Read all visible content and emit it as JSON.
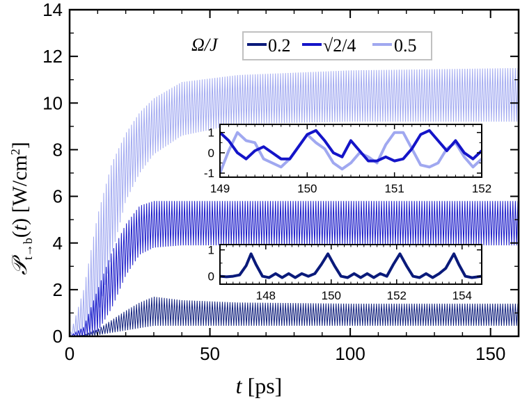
{
  "chart_data": [
    {
      "type": "line",
      "xlabel": "t [ps]",
      "ylabel": "P_t→b(t) [W/cm²]",
      "xlim": [
        0,
        160
      ],
      "ylim": [
        0,
        14
      ],
      "xticks": [
        0,
        50,
        100,
        150
      ],
      "yticks": [
        0,
        2,
        4,
        6,
        8,
        10,
        12,
        14
      ],
      "legend": {
        "title": "Ω/J",
        "placement": "top-center",
        "entries": [
          "0.2",
          "√2/4",
          "0.5"
        ]
      },
      "series": [
        {
          "name": "0.2",
          "color": "#0a1a7a",
          "envelope_t": [
            0,
            5,
            10,
            15,
            20,
            25,
            30,
            40,
            60,
            100,
            160
          ],
          "max": [
            0,
            0.05,
            0.3,
            0.7,
            1.1,
            1.45,
            1.7,
            1.55,
            1.45,
            1.4,
            1.4
          ],
          "min": [
            0,
            0,
            0.05,
            0.15,
            0.25,
            0.35,
            0.45,
            0.45,
            0.45,
            0.45,
            0.45
          ]
        },
        {
          "name": "√2/4",
          "color": "#1414c8",
          "envelope_t": [
            0,
            5,
            10,
            15,
            20,
            25,
            30,
            40,
            60,
            100,
            160
          ],
          "max": [
            0,
            0.4,
            2.0,
            3.6,
            4.8,
            5.6,
            5.8,
            5.8,
            5.8,
            5.8,
            5.8
          ],
          "min": [
            0,
            0,
            0.2,
            1.2,
            2.6,
            3.5,
            3.8,
            3.9,
            3.9,
            3.9,
            3.9
          ]
        },
        {
          "name": "0.5",
          "color": "#a0a8f0",
          "envelope_t": [
            0,
            5,
            10,
            15,
            20,
            25,
            30,
            40,
            60,
            100,
            160
          ],
          "max": [
            0,
            2.0,
            5.2,
            7.4,
            8.7,
            9.6,
            10.2,
            10.9,
            11.2,
            11.4,
            11.5
          ],
          "min": [
            0,
            0,
            0.8,
            3.5,
            5.8,
            7.0,
            7.8,
            8.6,
            9.1,
            9.2,
            9.2
          ]
        }
      ]
    },
    {
      "type": "line",
      "inset": "upper",
      "xlim": [
        149,
        152
      ],
      "ylim": [
        -1.2,
        1.4
      ],
      "xticks": [
        149,
        150,
        151,
        152
      ],
      "yticks": [
        -1,
        0,
        1
      ],
      "series": [
        {
          "name": "√2/4",
          "color": "#1414c8",
          "x": [
            149.0,
            149.1,
            149.2,
            149.3,
            149.4,
            149.5,
            149.6,
            149.7,
            149.8,
            149.9,
            150.0,
            150.1,
            150.2,
            150.3,
            150.4,
            150.5,
            150.6,
            150.7,
            150.8,
            150.9,
            151.0,
            151.1,
            151.2,
            151.3,
            151.4,
            151.5,
            151.6,
            151.7,
            151.8,
            151.9,
            152.0
          ],
          "y": [
            1.0,
            0.6,
            0.0,
            -0.3,
            0.1,
            0.3,
            0.0,
            -0.3,
            -0.3,
            0.3,
            0.9,
            1.1,
            0.6,
            0.0,
            -0.2,
            0.6,
            0.1,
            -0.4,
            -0.4,
            -0.2,
            -0.4,
            -0.3,
            0.2,
            0.9,
            1.1,
            0.6,
            0.1,
            0.6,
            0.0,
            -0.3,
            0.1
          ]
        },
        {
          "name": "0.5",
          "color": "#a0a8f0",
          "x": [
            149.0,
            149.1,
            149.2,
            149.3,
            149.4,
            149.5,
            149.6,
            149.7,
            149.8,
            149.9,
            150.0,
            150.1,
            150.2,
            150.3,
            150.4,
            150.5,
            150.6,
            150.7,
            150.8,
            150.9,
            151.0,
            151.1,
            151.2,
            151.3,
            151.4,
            151.5,
            151.6,
            151.7,
            151.8,
            151.9,
            152.0
          ],
          "y": [
            -1.0,
            0.1,
            1.0,
            0.6,
            0.5,
            -0.3,
            -0.5,
            -0.7,
            -0.3,
            0.3,
            0.9,
            0.5,
            0.2,
            -0.5,
            -0.8,
            -0.5,
            0.0,
            -0.2,
            -0.5,
            0.4,
            1.0,
            1.0,
            0.2,
            -0.6,
            -0.7,
            -0.5,
            0.2,
            0.5,
            -0.2,
            -0.7,
            -0.3
          ]
        }
      ]
    },
    {
      "type": "line",
      "inset": "lower",
      "xlim": [
        146.6,
        154.6
      ],
      "ylim": [
        -0.3,
        1.2
      ],
      "xticks": [
        148,
        150,
        152,
        154
      ],
      "yticks": [
        0,
        1
      ],
      "series": [
        {
          "name": "0.2",
          "color": "#0a1a7a",
          "x": [
            146.6,
            146.8,
            147.0,
            147.2,
            147.4,
            147.55,
            147.7,
            147.9,
            148.1,
            148.3,
            148.5,
            148.7,
            148.9,
            149.1,
            149.3,
            149.5,
            149.7,
            149.9,
            150.1,
            150.3,
            150.5,
            150.7,
            150.9,
            151.1,
            151.3,
            151.5,
            151.7,
            151.9,
            152.1,
            152.3,
            152.5,
            152.7,
            152.9,
            153.1,
            153.3,
            153.5,
            153.75,
            153.9,
            154.1,
            154.3,
            154.6
          ],
          "y": [
            0.0,
            -0.02,
            0.0,
            0.05,
            0.4,
            0.85,
            0.45,
            0.0,
            -0.05,
            0.1,
            -0.05,
            0.1,
            -0.05,
            0.1,
            0.0,
            0.1,
            0.45,
            0.85,
            0.4,
            0.0,
            -0.05,
            0.1,
            -0.05,
            0.1,
            -0.05,
            0.1,
            0.0,
            0.45,
            0.85,
            0.4,
            0.0,
            -0.05,
            0.1,
            -0.05,
            0.1,
            0.3,
            0.85,
            0.45,
            0.0,
            -0.05,
            0.0
          ]
        }
      ]
    }
  ]
}
